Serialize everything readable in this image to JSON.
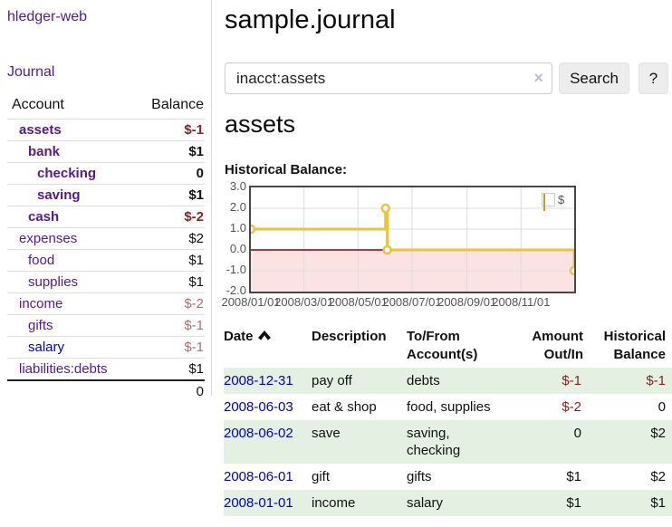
{
  "colors": {
    "link_purple": "#551a8b",
    "link_blue": "#0000cc",
    "negative_dark_red": "#8b1e1e",
    "negative_rose": "#b96c6c",
    "row_stripe_green": "#e3f0e2",
    "chart_line_gold": "#edc240",
    "chart_negative_fill": "#fbe3e3",
    "chart_zero_line": "#8b0000",
    "chart_grid": "#dcdcdc",
    "chart_border": "#474747"
  },
  "sidebar": {
    "brand": "hledger-web",
    "nav_journal": "Journal",
    "accounts": {
      "header_account": "Account",
      "header_balance": "Balance",
      "rows": [
        {
          "name": "assets",
          "balance": "$-1"
        },
        {
          "name": "bank",
          "balance": "$1"
        },
        {
          "name": "checking",
          "balance": "0"
        },
        {
          "name": "saving",
          "balance": "$1"
        },
        {
          "name": "cash",
          "balance": "$-2"
        },
        {
          "name": "expenses",
          "balance": "$2"
        },
        {
          "name": "food",
          "balance": "$1"
        },
        {
          "name": "supplies",
          "balance": "$1"
        },
        {
          "name": "income",
          "balance": "$-2"
        },
        {
          "name": "gifts",
          "balance": "$-1"
        },
        {
          "name": "salary",
          "balance": "$-1"
        },
        {
          "name": "liabilities:debts",
          "balance": "$1"
        }
      ],
      "total": "0"
    }
  },
  "main": {
    "title": "sample.journal",
    "search": {
      "value": "inacct:assets",
      "clear_icon": "×",
      "search_button": "Search",
      "help_button": "?"
    },
    "account_heading": "assets",
    "chart_title": "Historical Balance:"
  },
  "chart_data": {
    "type": "line",
    "title": "Historical Balance:",
    "step": true,
    "series": [
      {
        "name": "$",
        "points": [
          [
            "2008-01-01",
            1
          ],
          [
            "2008-06-01",
            2
          ],
          [
            "2008-06-03",
            0
          ],
          [
            "2008-12-31",
            -1
          ]
        ]
      }
    ],
    "x_range": [
      "2008-01-01",
      "2008-12-31"
    ],
    "x_ticks": [
      {
        "date": "2008-01-01",
        "label": "2008/01/01"
      },
      {
        "date": "2008-03-01",
        "label": "2008/03/01"
      },
      {
        "date": "2008-05-01",
        "label": "2008/05/01"
      },
      {
        "date": "2008-07-01",
        "label": "2008/07/01"
      },
      {
        "date": "2008-09-01",
        "label": "2008/09/01"
      },
      {
        "date": "2008-11-01",
        "label": "2008/11/01"
      }
    ],
    "y_ticks": [
      "3.0",
      "2.0",
      "1.0",
      "0.0",
      "-1.0",
      "-2.0"
    ],
    "ylim": [
      -2,
      3
    ],
    "grid": true,
    "legend": {
      "label": "$",
      "position": "top-right"
    },
    "negative_region_shaded": true
  },
  "register": {
    "headers": {
      "date": "Date",
      "description": "Description",
      "tofrom": "To/From Account(s)",
      "amount": "Amount Out/In",
      "balance": "Historical Balance"
    },
    "rows": [
      {
        "date": "2008-12-31",
        "description": "pay off",
        "accounts": "debts",
        "amount": "$-1",
        "balance": "$-1"
      },
      {
        "date": "2008-06-03",
        "description": "eat & shop",
        "accounts": "food, supplies",
        "amount": "$-2",
        "balance": "0"
      },
      {
        "date": "2008-06-02",
        "description": "save",
        "accounts": "saving, checking",
        "amount": "0",
        "balance": "$2"
      },
      {
        "date": "2008-06-01",
        "description": "gift",
        "accounts": "gifts",
        "amount": "$1",
        "balance": "$2"
      },
      {
        "date": "2008-01-01",
        "description": "income",
        "accounts": "salary",
        "amount": "$1",
        "balance": "$1"
      }
    ]
  }
}
